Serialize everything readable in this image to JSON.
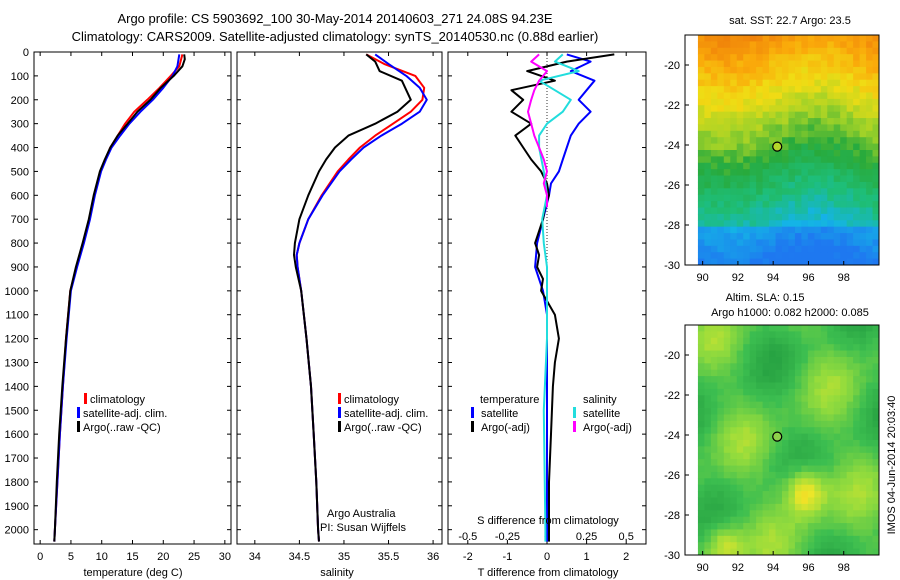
{
  "title": {
    "line1": "Argo profile: CS 5903692_100 30-May-2014 20140603_271 24.08S 94.23E",
    "line2": "Climatology: CARS2009. Satellite-adjusted climatology: synTS_20140530.nc (0.88d earlier)"
  },
  "colors": {
    "climatology": "#ff0000",
    "satellite": "#0000ff",
    "argo": "#000000",
    "sal_satellite": "#22dddd",
    "sal_argo": "#ff00ff"
  },
  "depth_axis": {
    "ticks": [
      0,
      100,
      200,
      300,
      400,
      500,
      600,
      700,
      800,
      900,
      1000,
      1100,
      1200,
      1300,
      1400,
      1500,
      1600,
      1700,
      1800,
      1900,
      2000
    ],
    "range": [
      0,
      2060
    ]
  },
  "chart_data": [
    {
      "type": "line",
      "xlabel": "temperature (deg C)",
      "xlim": [
        -1,
        31
      ],
      "xticks": [
        0,
        5,
        10,
        15,
        20,
        25,
        30
      ],
      "legend": [
        "climatology",
        "satellite-adj. clim.",
        "Argo(..raw -QC)"
      ],
      "series": [
        {
          "name": "climatology",
          "depth": [
            10,
            60,
            100,
            150,
            200,
            250,
            300,
            350,
            400,
            450,
            500,
            600,
            700,
            800,
            900,
            1000,
            1200,
            1400,
            1600,
            1800,
            2000,
            2050
          ],
          "values": [
            23.1,
            22.6,
            21.2,
            19.4,
            17.4,
            15.3,
            13.8,
            12.6,
            11.4,
            10.6,
            9.8,
            8.8,
            8.0,
            7.0,
            5.9,
            4.9,
            4.2,
            3.7,
            3.2,
            2.8,
            2.4,
            2.3
          ]
        },
        {
          "name": "satellite-adj. clim.",
          "depth": [
            10,
            60,
            100,
            150,
            200,
            250,
            300,
            350,
            400,
            450,
            500,
            600,
            700,
            800,
            900,
            1000,
            1200,
            1400,
            1600,
            1800,
            2000,
            2050
          ],
          "values": [
            22.6,
            22.3,
            21.5,
            20.0,
            18.3,
            16.3,
            14.5,
            13.0,
            11.6,
            10.7,
            9.9,
            8.9,
            8.1,
            7.1,
            6.0,
            5.0,
            4.3,
            3.7,
            3.2,
            2.8,
            2.4,
            2.3
          ]
        },
        {
          "name": "Argo(..raw -QC)",
          "depth": [
            10,
            30,
            60,
            100,
            150,
            200,
            250,
            300,
            350,
            400,
            450,
            500,
            600,
            700,
            800,
            900,
            1000,
            1200,
            1400,
            1600,
            1800,
            2000,
            2050
          ],
          "values": [
            23.4,
            23.5,
            23.1,
            21.7,
            19.6,
            17.9,
            15.8,
            14.2,
            12.6,
            11.4,
            10.5,
            9.7,
            8.7,
            7.9,
            6.9,
            5.8,
            4.9,
            4.2,
            3.6,
            3.1,
            2.7,
            2.4,
            2.3
          ]
        }
      ]
    },
    {
      "type": "line",
      "xlabel": "salinity",
      "xlim": [
        33.8,
        36.1
      ],
      "xticks": [
        34,
        34.5,
        35,
        35.5,
        36
      ],
      "xtick_labels": [
        "34",
        "34.5",
        "35",
        "35.5",
        "36"
      ],
      "legend": [
        "climatology",
        "satellite-adj. clim.",
        "Argo(..raw -QC)"
      ],
      "annotation": [
        "Argo Australia",
        "PI: Susan Wijffels"
      ],
      "series": [
        {
          "name": "climatology",
          "depth": [
            10,
            50,
            100,
            150,
            200,
            250,
            300,
            350,
            400,
            450,
            500,
            600,
            700,
            800,
            850,
            900,
            1000,
            1200,
            1400,
            1600,
            1800,
            2000,
            2050
          ],
          "values": [
            35.25,
            35.45,
            35.8,
            35.9,
            35.88,
            35.75,
            35.55,
            35.35,
            35.18,
            35.05,
            34.93,
            34.75,
            34.6,
            34.5,
            34.47,
            34.48,
            34.52,
            34.58,
            34.63,
            34.66,
            34.69,
            34.71,
            34.72
          ]
        },
        {
          "name": "satellite-adj. clim.",
          "depth": [
            10,
            50,
            100,
            150,
            200,
            250,
            300,
            350,
            400,
            450,
            500,
            600,
            700,
            800,
            850,
            900,
            1000,
            1200,
            1400,
            1600,
            1800,
            2000,
            2050
          ],
          "values": [
            35.35,
            35.5,
            35.7,
            35.85,
            35.93,
            35.85,
            35.65,
            35.42,
            35.22,
            35.08,
            34.95,
            34.76,
            34.6,
            34.5,
            34.47,
            34.48,
            34.52,
            34.58,
            34.63,
            34.66,
            34.69,
            34.71,
            34.72
          ]
        },
        {
          "name": "Argo(..raw -QC)",
          "depth": [
            10,
            40,
            80,
            120,
            160,
            200,
            250,
            300,
            350,
            400,
            450,
            500,
            600,
            700,
            800,
            850,
            900,
            1000,
            1200,
            1400,
            1600,
            1800,
            2000,
            2050
          ],
          "values": [
            35.25,
            35.35,
            35.4,
            35.65,
            35.7,
            35.75,
            35.6,
            35.35,
            35.05,
            34.9,
            34.8,
            34.72,
            34.6,
            34.5,
            34.45,
            34.44,
            34.46,
            34.52,
            34.58,
            34.63,
            34.66,
            34.69,
            34.71,
            34.72
          ]
        }
      ]
    },
    {
      "type": "line",
      "xlabel": "T difference from climatology",
      "top_axis_label": "S difference from climatology",
      "xlim": [
        -2.5,
        2.5
      ],
      "xticks": [
        -2,
        -1,
        0,
        1,
        2
      ],
      "sal_xticks": [
        -0.5,
        -0.25,
        0,
        0.25,
        0.5
      ],
      "sal_xtick_labels": [
        "-0.5",
        "-0.25",
        "0",
        "0.25",
        "0.5"
      ],
      "legend_temperature": {
        "heading": "temperature",
        "items": [
          "satellite",
          "Argo(-adj)"
        ]
      },
      "legend_salinity": {
        "heading": "salinity",
        "items": [
          "satellite",
          "Argo(-adj)"
        ]
      },
      "series": [
        {
          "name": "satellite",
          "variable": "temperature",
          "depth": [
            10,
            40,
            80,
            120,
            160,
            200,
            250,
            300,
            350,
            400,
            450,
            500,
            550,
            600,
            700,
            800,
            900,
            1000,
            1100,
            1200,
            1500,
            2000,
            2050
          ],
          "values": [
            0.5,
            1.1,
            0.6,
            1.2,
            1.0,
            0.8,
            1.1,
            0.8,
            0.6,
            0.5,
            0.4,
            0.3,
            0.1,
            0.05,
            -0.1,
            -0.25,
            -0.3,
            -0.1,
            0.0,
            0.0,
            0.0,
            0.0,
            0.0
          ]
        },
        {
          "name": "Argo(-adj)",
          "variable": "temperature",
          "depth": [
            10,
            40,
            80,
            120,
            160,
            200,
            250,
            300,
            350,
            400,
            450,
            500,
            550,
            600,
            650,
            700,
            750,
            800,
            850,
            900,
            950,
            1000,
            1100,
            1200,
            1300,
            1400,
            1600,
            1800,
            2000,
            2050
          ],
          "values": [
            1.7,
            0.5,
            -0.5,
            0.2,
            -0.9,
            -0.6,
            -0.9,
            -0.4,
            -0.8,
            -0.6,
            -0.4,
            -0.15,
            0.0,
            0.05,
            -0.05,
            -0.1,
            -0.2,
            -0.3,
            -0.2,
            -0.25,
            -0.1,
            -0.15,
            0.2,
            0.3,
            0.2,
            0.15,
            0.1,
            0.05,
            0.05,
            0.05
          ]
        },
        {
          "name": "satellite",
          "variable": "salinity",
          "depth": [
            10,
            40,
            80,
            120,
            160,
            200,
            250,
            300,
            350,
            400,
            500,
            600,
            700,
            800,
            900,
            1000,
            1200,
            1500,
            2000,
            2050
          ],
          "values": [
            0.1,
            0.05,
            0.2,
            -0.05,
            0.05,
            0.15,
            0.1,
            0.0,
            -0.05,
            -0.05,
            -0.02,
            0.0,
            -0.03,
            -0.02,
            0.0,
            0.0,
            0.0,
            -0.02,
            -0.01,
            -0.01
          ]
        },
        {
          "name": "Argo(-adj)",
          "variable": "salinity",
          "depth": [
            10,
            40,
            80,
            120,
            160,
            200,
            250,
            300,
            350,
            400,
            450,
            500,
            550,
            600,
            650
          ],
          "values": [
            -0.05,
            -0.1,
            0.0,
            -0.05,
            -0.08,
            -0.1,
            -0.12,
            -0.1,
            -0.08,
            -0.05,
            -0.02,
            0.0,
            -0.02,
            0.0,
            0.0
          ]
        }
      ]
    },
    {
      "type": "heatmap",
      "title": "sat. SST: 22.7  Argo: 23.5",
      "xlim": [
        89,
        100
      ],
      "ylim": [
        -30,
        -18.5
      ],
      "xticks": [
        90,
        92,
        94,
        96,
        98
      ],
      "yticks": [
        -20,
        -22,
        -24,
        -26,
        -28,
        -30
      ],
      "marker": {
        "lon": 94.23,
        "lat": -24.08
      }
    },
    {
      "type": "heatmap",
      "title": "Altim. SLA: 0.15",
      "subtitle": "Argo h1000: 0.082  h2000: 0.085",
      "xlim": [
        89,
        100
      ],
      "ylim": [
        -30,
        -18.5
      ],
      "xticks": [
        90,
        92,
        94,
        96,
        98
      ],
      "yticks": [
        -20,
        -22,
        -24,
        -26,
        -28,
        -30
      ],
      "marker": {
        "lon": 94.23,
        "lat": -24.08
      }
    }
  ],
  "footer_vertical": "IMOS 04-Jun-2014 20:03:40"
}
